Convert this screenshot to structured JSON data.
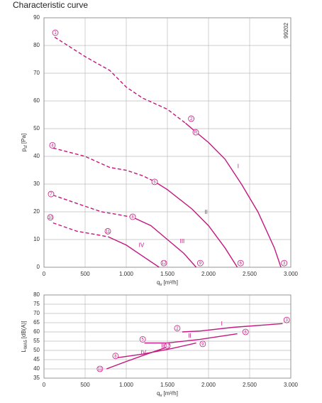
{
  "title": "Characteristic curve",
  "chart_data": [
    {
      "type": "line",
      "code": "99202",
      "xlabel": {
        "text": "q",
        "sub": "v",
        "unit": "[m³/h]"
      },
      "ylabel": {
        "text": "p",
        "sub": "sf",
        "unit": "[Pa]"
      },
      "xlim": [
        0,
        3000
      ],
      "xticks": [
        0,
        500,
        {
          "value": 1000,
          "label": "1.000"
        },
        {
          "value": 1500,
          "label": "1.500"
        },
        {
          "value": 2000,
          "label": "2.000"
        },
        {
          "value": 2500,
          "label": "2.500"
        },
        {
          "value": 3000,
          "label": "3.000"
        }
      ],
      "ylim": [
        0,
        90
      ],
      "yticks": [
        0,
        10,
        20,
        30,
        40,
        50,
        60,
        70,
        80,
        90
      ],
      "grid": true,
      "series": [
        {
          "name": "I",
          "color": "#c2187f",
          "dashed": {
            "x": [
              130,
              500,
              800,
              1000,
              1200,
              1500,
              1720
            ],
            "values": [
              83,
              76,
              71,
              65,
              61,
              57,
              52
            ]
          },
          "solid": {
            "x": [
              1720,
              1850,
              2000,
              2200,
              2400,
              2600,
              2800,
              2880
            ],
            "values": [
              52,
              48.7,
              45,
              39,
              30,
              20,
              7,
              0
            ]
          }
        },
        {
          "name": "II",
          "color": "#c2187f",
          "dashed": {
            "x": [
              110,
              500,
              800,
              1000,
              1200,
              1340
            ],
            "values": [
              43,
              40,
              36,
              35,
              33,
              31
            ]
          },
          "solid": {
            "x": [
              1340,
              1500,
              1800,
              2000,
              2200,
              2350
            ],
            "values": [
              31,
              28,
              21,
              15,
              7,
              0
            ]
          }
        },
        {
          "name": "III",
          "color": "#c2187f",
          "dashed": {
            "x": [
              110,
              500,
              700,
              900,
              1080
            ],
            "values": [
              26,
              22,
              20,
              19,
              18
            ]
          },
          "solid": {
            "x": [
              1080,
              1300,
              1500,
              1700,
              1850
            ],
            "values": [
              18,
              15,
              10,
              5,
              0
            ]
          }
        },
        {
          "name": "IV",
          "color": "#c2187f",
          "dashed": {
            "x": [
              110,
              400,
              780
            ],
            "values": [
              16,
              13,
              11
            ]
          },
          "solid": {
            "x": [
              780,
              1000,
              1200,
              1400
            ],
            "values": [
              11,
              8,
              4,
              0
            ]
          }
        }
      ],
      "annotations": [
        {
          "text": "1",
          "x": 138,
          "y": 84.6
        },
        {
          "text": "2",
          "x": 1790,
          "y": 53.6
        },
        {
          "text": "R",
          "x": 1845,
          "y": 48.7
        },
        {
          "text": "3",
          "x": 2920,
          "y": 1.5
        },
        {
          "text": "4",
          "x": 103,
          "y": 44
        },
        {
          "text": "5",
          "x": 1345,
          "y": 30.8
        },
        {
          "text": "6",
          "x": 2390,
          "y": 1.5
        },
        {
          "text": "7",
          "x": 86,
          "y": 26.4
        },
        {
          "text": "8",
          "x": 1078,
          "y": 18.2
        },
        {
          "text": "9",
          "x": 1900,
          "y": 1.5
        },
        {
          "text": "10",
          "x": 78,
          "y": 18
        },
        {
          "text": "11",
          "x": 776,
          "y": 13
        },
        {
          "text": "12",
          "x": 1457,
          "y": 1.5
        }
      ]
    },
    {
      "type": "line",
      "xlabel": {
        "text": "q",
        "sub": "v",
        "unit": "[m³/h]"
      },
      "ylabel": {
        "text": "L",
        "sub": "WA5",
        "unit": "[dB(A)]"
      },
      "xlim": [
        0,
        3000
      ],
      "xticks": [
        0,
        500,
        {
          "value": 1000,
          "label": "1.000"
        },
        {
          "value": 1500,
          "label": "1.500"
        },
        {
          "value": 2000,
          "label": "2.000"
        },
        {
          "value": 2500,
          "label": "2.500"
        },
        {
          "value": 3000,
          "label": "3.000"
        }
      ],
      "ylim": [
        35,
        80
      ],
      "yticks": [
        35,
        40,
        45,
        50,
        55,
        60,
        65,
        70,
        75,
        80
      ],
      "grid": true,
      "series": [
        {
          "name": "I",
          "color": "#c2187f",
          "solid": {
            "x": [
              1680,
              1900,
              2300,
              2900
            ],
            "values": [
              60,
              60.5,
              62.5,
              64.5
            ]
          }
        },
        {
          "name": "II",
          "color": "#c2187f",
          "solid": {
            "x": [
              1220,
              1500,
              1900,
              2350
            ],
            "values": [
              54,
              54,
              56,
              59
            ]
          }
        },
        {
          "name": "III",
          "color": "#c2187f",
          "solid": {
            "x": [
              880,
              1200,
              1550,
              1850
            ],
            "values": [
              46,
              48,
              51,
              54
            ]
          }
        },
        {
          "name": "IV",
          "color": "#c2187f",
          "solid": {
            "x": [
              760,
              1000,
              1250,
              1480
            ],
            "values": [
              40,
              44,
              48,
              51.5
            ]
          }
        }
      ],
      "annotations": [
        {
          "text": "2",
          "x": 1620,
          "y": 62
        },
        {
          "text": "3",
          "x": 2950,
          "y": 66.5
        },
        {
          "text": "5",
          "x": 1200,
          "y": 56
        },
        {
          "text": "6",
          "x": 2450,
          "y": 60
        },
        {
          "text": "8",
          "x": 870,
          "y": 47
        },
        {
          "text": "9",
          "x": 1930,
          "y": 53.5
        },
        {
          "text": "11",
          "x": 680,
          "y": 40
        },
        {
          "text": "12",
          "x": 1500,
          "y": 52.5
        }
      ]
    }
  ]
}
